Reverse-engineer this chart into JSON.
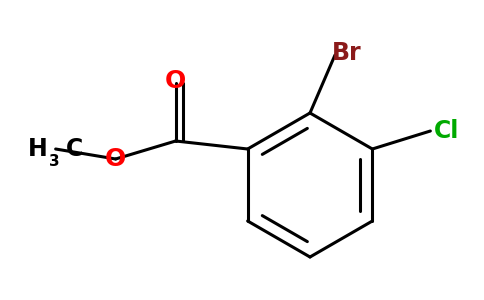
{
  "background_color": "#ffffff",
  "bond_color": "#000000",
  "bond_width": 2.2,
  "atom_colors": {
    "O_carbonyl": "#ff0000",
    "O_ester": "#ff0000",
    "Br": "#8b1a1a",
    "Cl": "#00aa00",
    "C": "#000000",
    "H": "#000000"
  },
  "font_size_atoms": 16,
  "font_size_subscript": 11
}
